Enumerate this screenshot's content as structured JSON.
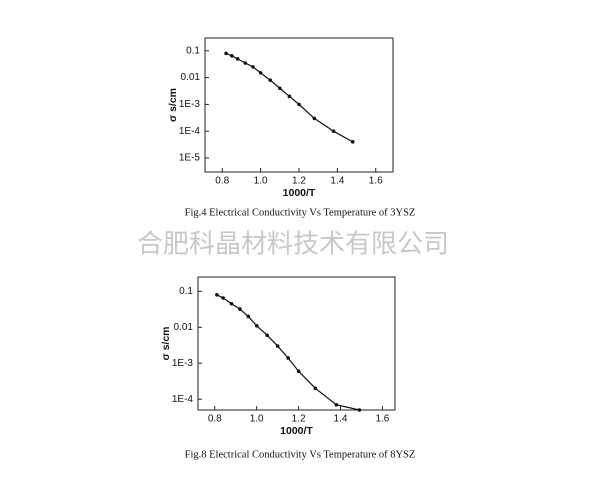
{
  "watermark": "合肥科晶材料技术有限公司",
  "chart_data": [
    {
      "type": "line",
      "caption": "Fig.4 Electrical Conductivity Vs Temperature of 3YSZ",
      "x_label": "1000/T",
      "y_label": "σ s/cm",
      "log_y": true,
      "color": "#111111",
      "x": [
        0.82,
        0.85,
        0.88,
        0.92,
        0.96,
        1.0,
        1.05,
        1.1,
        1.15,
        1.2,
        1.28,
        1.38,
        1.48
      ],
      "values": [
        0.08,
        0.065,
        0.05,
        0.035,
        0.025,
        0.015,
        0.008,
        0.004,
        0.002,
        0.001,
        0.0003,
        0.0001,
        4e-05
      ],
      "xlim": [
        0.71,
        1.69
      ],
      "ylim": [
        3e-06,
        0.3
      ],
      "xticks": [
        0.8,
        {
          "value": 1.0,
          "label": "1.0"
        },
        1.2,
        1.4,
        1.6
      ],
      "yticks": [
        0.1,
        0.01,
        {
          "value": 0.001,
          "label": "1E-3"
        },
        {
          "value": 0.0001,
          "label": "1E-4"
        },
        {
          "value": 1e-05,
          "label": "1E-5"
        }
      ]
    },
    {
      "type": "line",
      "caption": "Fig.8 Electrical Conductivity Vs Temperature of 8YSZ",
      "x_label": "1000/T",
      "y_label": "σ s/cm",
      "log_y": true,
      "color": "#111111",
      "x": [
        0.81,
        0.84,
        0.88,
        0.92,
        0.96,
        1.0,
        1.05,
        1.1,
        1.15,
        1.2,
        1.28,
        1.38,
        1.49
      ],
      "values": [
        0.08,
        0.065,
        0.045,
        0.032,
        0.02,
        0.011,
        0.006,
        0.003,
        0.0014,
        0.0006,
        0.0002,
        7e-05,
        5e-05
      ],
      "xlim": [
        0.72,
        1.66
      ],
      "ylim": [
        5e-05,
        0.25
      ],
      "xticks": [
        0.8,
        {
          "value": 1.0,
          "label": "1.0"
        },
        1.2,
        1.4,
        1.6
      ],
      "yticks": [
        0.1,
        0.01,
        {
          "value": 0.001,
          "label": "1E-3"
        },
        {
          "value": 0.0001,
          "label": "1E-4"
        }
      ]
    }
  ]
}
